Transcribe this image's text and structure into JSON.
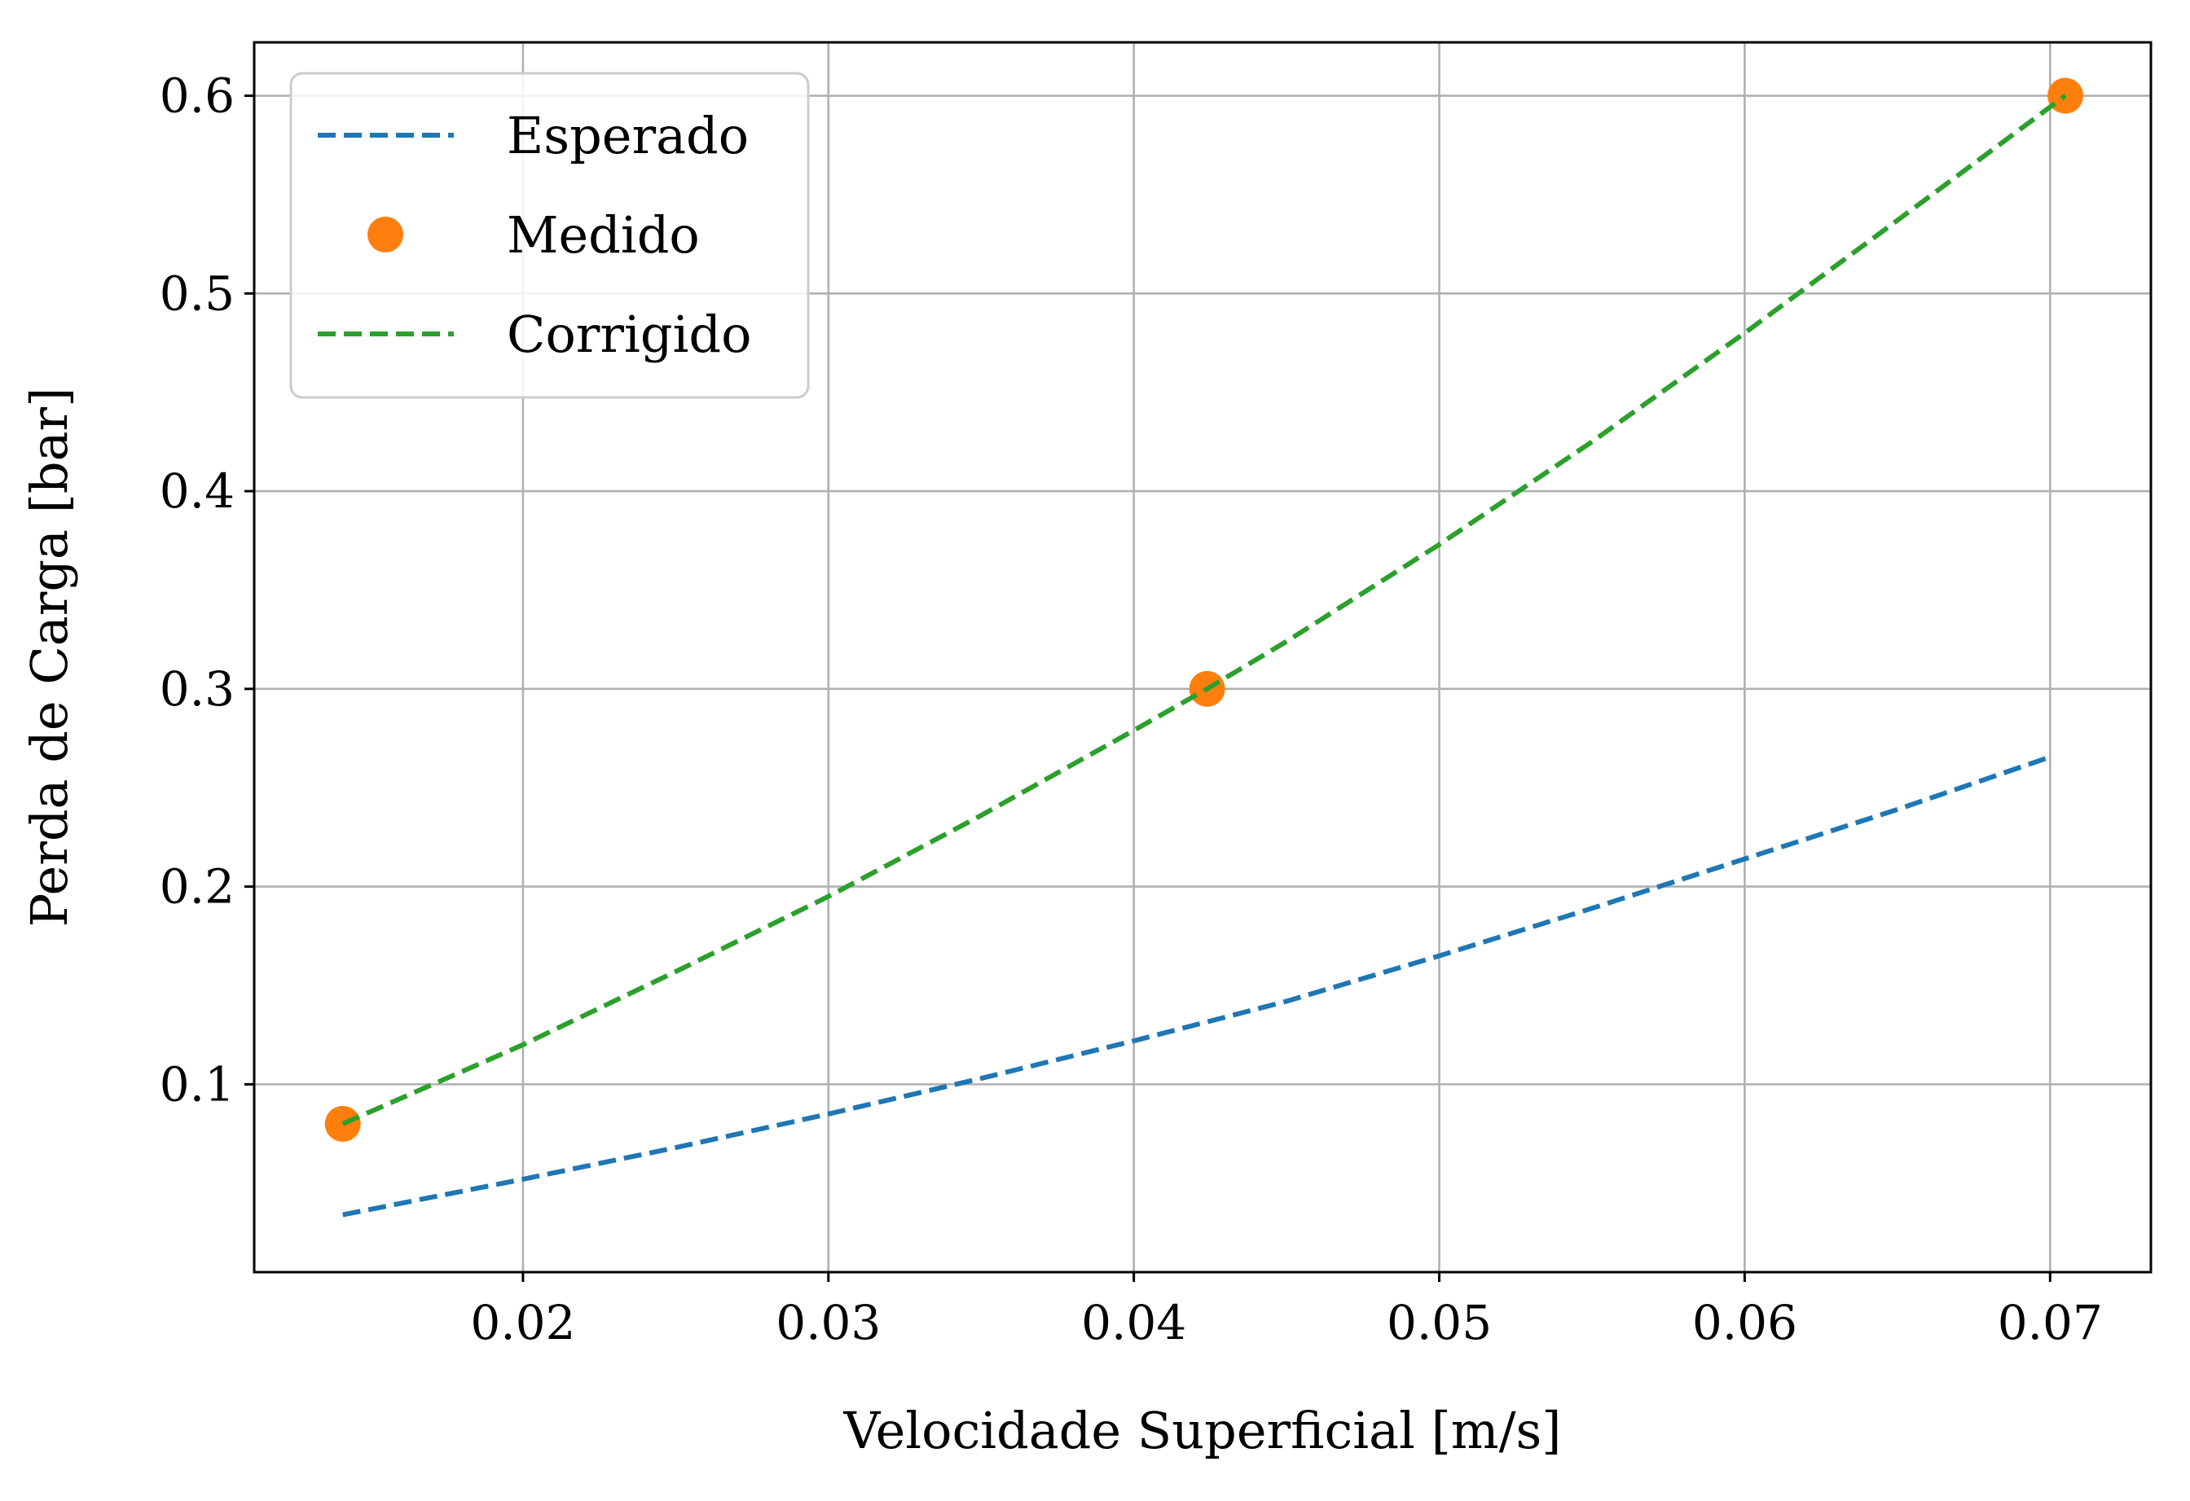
{
  "chart_data": {
    "type": "line",
    "title": "",
    "xlabel": "Velocidade Superficial [m/s]",
    "ylabel": "Perda de Carga [bar]",
    "xlim": [
      0.0112,
      0.0733
    ],
    "ylim": [
      0.005,
      0.627
    ],
    "xticks": [
      {
        "value": 0.02,
        "label": "0.02"
      },
      {
        "value": 0.03,
        "label": "0.03"
      },
      {
        "value": 0.04,
        "label": "0.04"
      },
      {
        "value": 0.05,
        "label": "0.05"
      },
      {
        "value": 0.06,
        "label": "0.06"
      },
      {
        "value": 0.07,
        "label": "0.07"
      }
    ],
    "yticks": [
      {
        "value": 0.1,
        "label": "0.1"
      },
      {
        "value": 0.2,
        "label": "0.2"
      },
      {
        "value": 0.3,
        "label": "0.3"
      },
      {
        "value": 0.4,
        "label": "0.4"
      },
      {
        "value": 0.5,
        "label": "0.5"
      },
      {
        "value": 0.6,
        "label": "0.6"
      }
    ],
    "grid": true,
    "legend_position": "top-left",
    "series": [
      {
        "name": "Esperado",
        "style": "dashed-line",
        "color": "#1f77b4",
        "x": [
          0.0141,
          0.02,
          0.025,
          0.03,
          0.035,
          0.04,
          0.045,
          0.05,
          0.055,
          0.06,
          0.065,
          0.0699
        ],
        "y": [
          0.034,
          0.052,
          0.068,
          0.085,
          0.103,
          0.122,
          0.142,
          0.165,
          0.189,
          0.214,
          0.239,
          0.265
        ]
      },
      {
        "name": "Medido",
        "style": "markers",
        "color": "#ff7f0e",
        "x": [
          0.0141,
          0.0424,
          0.0705
        ],
        "y": [
          0.08,
          0.3,
          0.6
        ]
      },
      {
        "name": "Corrigido",
        "style": "dashed-line",
        "color": "#2ca02c",
        "x": [
          0.0141,
          0.02,
          0.025,
          0.03,
          0.035,
          0.04,
          0.0424,
          0.045,
          0.05,
          0.055,
          0.06,
          0.065,
          0.0705
        ],
        "y": [
          0.08,
          0.12,
          0.157,
          0.195,
          0.236,
          0.279,
          0.3,
          0.324,
          0.373,
          0.425,
          0.48,
          0.537,
          0.6
        ]
      }
    ]
  }
}
